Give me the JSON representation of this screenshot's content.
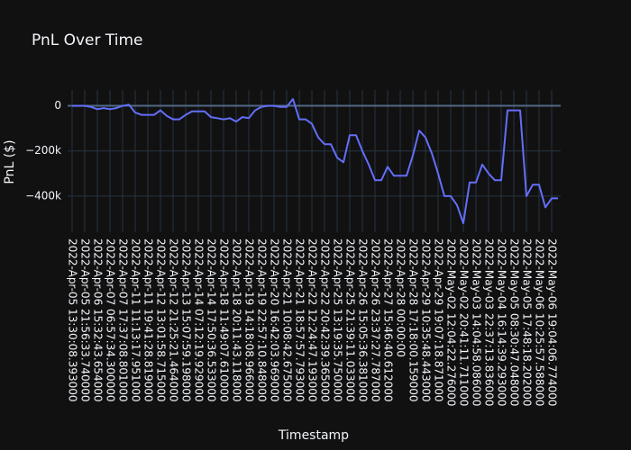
{
  "chart_data": {
    "type": "line",
    "title": "PnL Over Time",
    "x_label": "Timestamp",
    "y_label": "PnL ($)",
    "x": [
      "2022-Apr-05 13:30:08.393000",
      null,
      "2022-Apr-05 21:56:33.740000",
      null,
      "2022-Apr-06 15:32:43.654000",
      null,
      "2022-Apr-07 06:57:34.300000",
      null,
      "2022-Apr-07 17:37:08.801000",
      null,
      "2022-Apr-11 11:13:17.951000",
      null,
      "2022-Apr-11 19:41:28.819000",
      null,
      "2022-Apr-12 13:01:58.715000",
      null,
      "2022-Apr-12 21:25:21.464000",
      null,
      "2022-Apr-13 15:07:59.198000",
      null,
      "2022-Apr-14 07:12:19.929000",
      null,
      "2022-Apr-14 17:50:36.533000",
      null,
      "2022-Apr-18 11:49:07.610000",
      null,
      "2022-Apr-18 20:11:43.118000",
      null,
      "2022-Apr-19 14:18:08.966000",
      null,
      "2022-Apr-19 22:57:10.848000",
      null,
      "2022-Apr-20 16:42:03.969000",
      null,
      "2022-Apr-21 10:08:42.675000",
      null,
      "2022-Apr-21 18:57:57.793000",
      null,
      "2022-Apr-22 12:24:47.193000",
      null,
      "2022-Apr-22 20:42:39.365000",
      null,
      "2022-Apr-25 13:19:35.750000",
      null,
      "2022-Apr-25 21:39:11.033000",
      null,
      "2022-Apr-26 15:05:36.381000",
      null,
      "2022-Apr-26 23:37:27.787000",
      null,
      "2022-Apr-27 15:46:40.612000",
      null,
      "2022-Apr-28 00:00:00",
      null,
      "2022-Apr-28 17:18:00.159000",
      null,
      "2022-Apr-29 10:35:48.443000",
      null,
      "2022-Apr-29 19:07:18.871000",
      null,
      "2022-May-02 12:04:22.276000",
      null,
      "2022-May-02 20:41:11.711000",
      null,
      "2022-May-03 14:04:58.086000",
      null,
      "2022-May-03 22:37:13.836000",
      null,
      "2022-May-04 16:14:39.293000",
      null,
      "2022-May-05 08:30:47.048000",
      null,
      "2022-May-05 17:48:18.202000",
      null,
      "2022-May-06 10:25:57.588000",
      null,
      "2022-May-06 19:04:06.774000",
      null
    ],
    "series": [
      {
        "color": "#636efa",
        "values": [
          0,
          0,
          0,
          -5000,
          -15000,
          -10000,
          -15000,
          -10000,
          0,
          5000,
          -30000,
          -40000,
          -40000,
          -40000,
          -20000,
          -45000,
          -60000,
          -60000,
          -40000,
          -25000,
          -25000,
          -25000,
          -50000,
          -55000,
          -60000,
          -55000,
          -70000,
          -50000,
          -55000,
          -20000,
          -5000,
          0,
          0,
          -5000,
          -5000,
          30000,
          -60000,
          -60000,
          -80000,
          -140000,
          -170000,
          -170000,
          -230000,
          -250000,
          -130000,
          -130000,
          -200000,
          -260000,
          -330000,
          -330000,
          -270000,
          -310000,
          -310000,
          -310000,
          -220000,
          -110000,
          -140000,
          -210000,
          -300000,
          -400000,
          -400000,
          -440000,
          -520000,
          -340000,
          -340000,
          -260000,
          -300000,
          -330000,
          -330000,
          -20000,
          -20000,
          -20000,
          -400000,
          -350000,
          -350000,
          -450000,
          -410000,
          -410000
        ]
      }
    ],
    "ylim": [
      -560000,
      70000
    ],
    "yticks": [
      {
        "value": -400000,
        "label": "−400k"
      },
      {
        "value": -200000,
        "label": "−200k"
      },
      0
    ],
    "grid": true
  }
}
